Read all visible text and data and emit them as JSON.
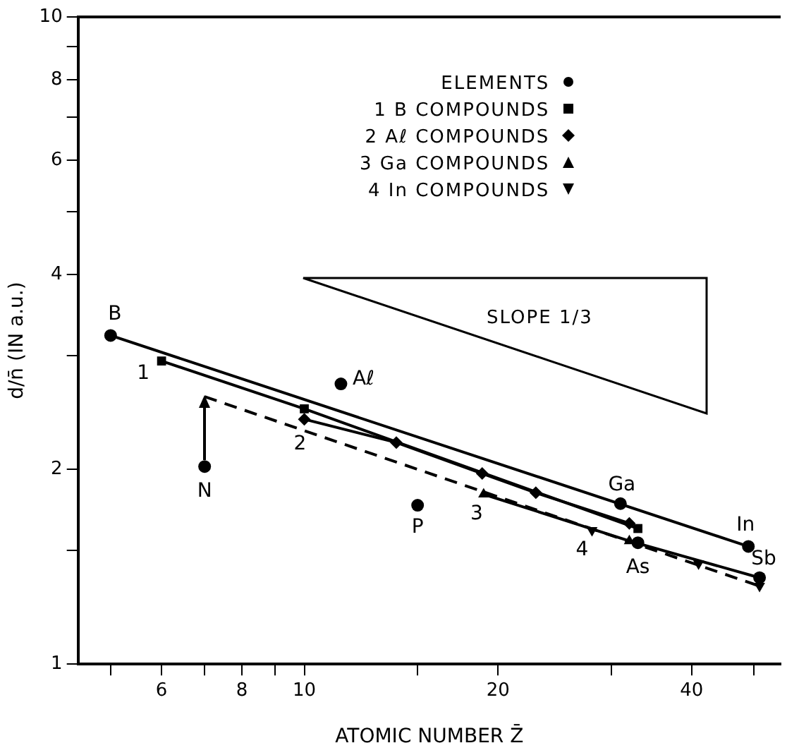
{
  "chart_data": {
    "type": "scatter",
    "xlabel": "ATOMIC NUMBER Z̄",
    "ylabel": "d/n̄ (IN a.u.)",
    "log": "xy",
    "grid": false,
    "legend": "top",
    "xlim": [
      4.45,
      55
    ],
    "ylim": [
      1,
      10
    ],
    "xticks": [
      {
        "value": 5,
        "label": null
      },
      6,
      {
        "value": 7,
        "label": null
      },
      8,
      {
        "value": 9,
        "label": null
      },
      10,
      {
        "value": 15,
        "label": null
      },
      20,
      {
        "value": 30,
        "label": null
      },
      40,
      {
        "value": 50,
        "label": null
      }
    ],
    "yticks": [
      1,
      {
        "value": 1.5,
        "label": null
      },
      2,
      {
        "value": 3,
        "label": null
      },
      4,
      {
        "value": 5,
        "label": null
      },
      6,
      {
        "value": 7,
        "label": null
      },
      8,
      {
        "value": 9,
        "label": null
      },
      10
    ],
    "series": [
      {
        "name": "ELEMENTS",
        "type": "scatter",
        "marker": "circle",
        "color": "#000000",
        "x": [
          5,
          7,
          11.4,
          15,
          31,
          33,
          49,
          51
        ],
        "values": [
          3.22,
          2.02,
          2.71,
          1.76,
          1.77,
          1.54,
          1.52,
          1.36
        ]
      },
      {
        "name": "1 B COMPOUNDS",
        "type": "line",
        "marker": "square",
        "color": "#000000",
        "x": [
          6,
          10,
          33
        ],
        "values": [
          2.94,
          2.48,
          1.62
        ]
      },
      {
        "name": "2 Aℓ COMPOUNDS",
        "type": "line",
        "marker": "diamond",
        "color": "#000000",
        "x": [
          10,
          13.9,
          18.9,
          22.9,
          32
        ],
        "values": [
          2.39,
          2.2,
          1.97,
          1.84,
          1.65
        ]
      },
      {
        "name": "3 Ga COMPOUNDS",
        "type": "line",
        "marker": "triangle",
        "color": "#000000",
        "x": [
          19,
          32,
          51
        ],
        "values": [
          1.83,
          1.55,
          1.36
        ]
      },
      {
        "name": "4 In COMPOUNDS",
        "type": "scatter",
        "marker": "triangle-down",
        "color": "#000000",
        "x": [
          28,
          41,
          51
        ],
        "values": [
          1.61,
          1.43,
          1.32
        ]
      },
      {
        "type": "line",
        "marker": "none",
        "color": "#000000",
        "x": [
          5,
          49
        ],
        "values": [
          3.22,
          1.52
        ]
      },
      {
        "type": "line",
        "marker": "none",
        "line_style": "dashed",
        "color": "#000000",
        "x": [
          7,
          51
        ],
        "values": [
          2.59,
          1.32
        ]
      }
    ],
    "annotations": [
      "SLOPE 1/3",
      {
        "text": "B",
        "x": 5,
        "y": 3.22
      },
      {
        "text": "1",
        "x": 6,
        "y": 2.94
      },
      {
        "text": "Aℓ",
        "x": 11.4,
        "y": 2.71
      },
      {
        "text": "2",
        "x": 10,
        "y": 2.39
      },
      {
        "text": "N",
        "x": 7,
        "y": 2.02
      },
      {
        "text": "P",
        "x": 15,
        "y": 1.76
      },
      {
        "text": "Ga",
        "x": 31,
        "y": 1.77
      },
      {
        "text": "3",
        "x": 19,
        "y": 1.83
      },
      {
        "text": "4",
        "x": 28,
        "y": 1.61
      },
      {
        "text": "As",
        "x": 33,
        "y": 1.54
      },
      {
        "text": "In",
        "x": 49,
        "y": 1.52
      },
      {
        "text": "Sb",
        "x": 51,
        "y": 1.36
      }
    ]
  }
}
